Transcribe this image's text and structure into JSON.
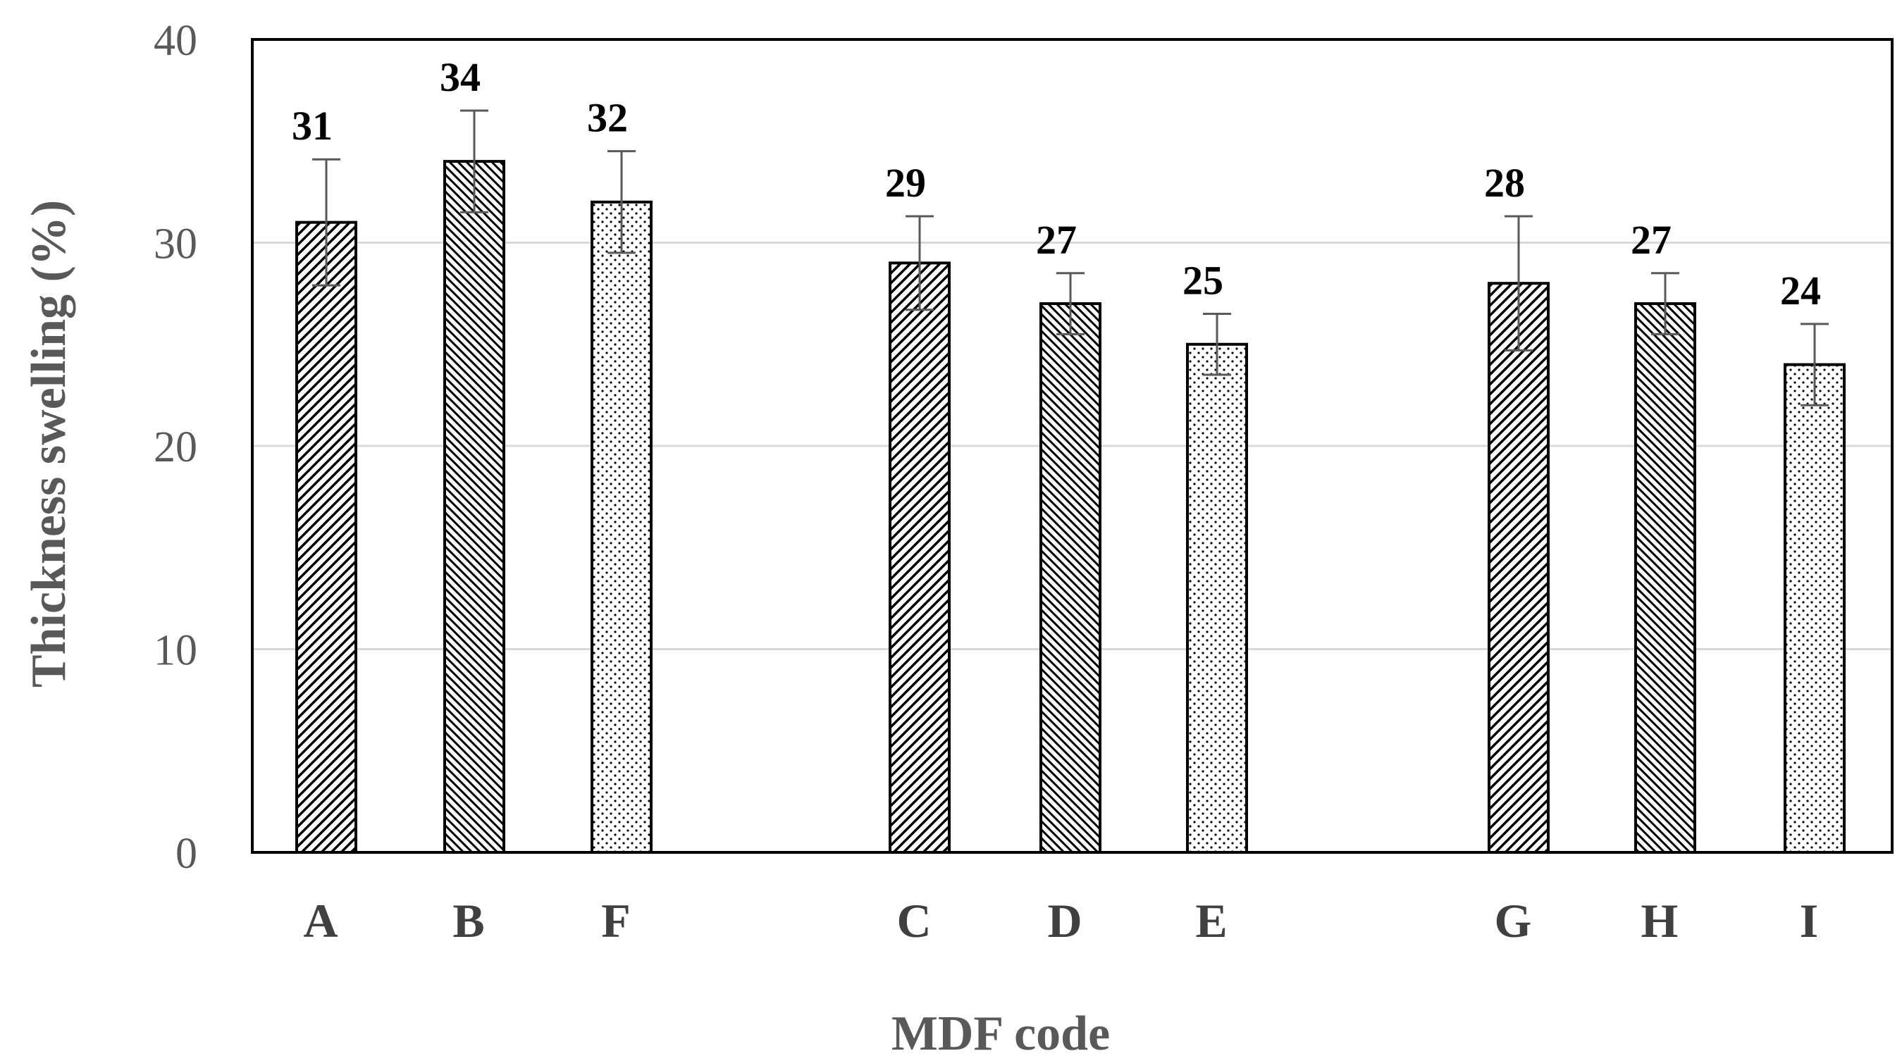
{
  "chart_data": {
    "type": "bar",
    "xlabel": "MDF code",
    "ylabel": "Thickness swelling  (%)",
    "ylim": [
      0,
      40
    ],
    "yticks": [
      0,
      10,
      20,
      30,
      40
    ],
    "grid": true,
    "legend": "none",
    "groups": [
      {
        "categories": [
          "A",
          "B",
          "F"
        ]
      },
      {
        "categories": [
          "C",
          "D",
          "E"
        ]
      },
      {
        "categories": [
          "G",
          "H",
          "I"
        ]
      }
    ],
    "categories": [
      "A",
      "B",
      "F",
      "C",
      "D",
      "E",
      "G",
      "H",
      "I"
    ],
    "values": [
      31,
      34,
      32,
      29,
      27,
      25,
      28,
      27,
      24
    ],
    "errors": [
      3.1,
      2.5,
      2.5,
      2.3,
      1.5,
      1.5,
      3.3,
      1.5,
      2.0
    ],
    "data_labels": [
      "31",
      "34",
      "32",
      "29",
      "27",
      "25",
      "28",
      "27",
      "24"
    ],
    "patterns": [
      "diagonal-right",
      "diagonal-left",
      "dots",
      "diagonal-right",
      "diagonal-left",
      "dots",
      "diagonal-right",
      "diagonal-left",
      "dots"
    ],
    "colors": {
      "bar_stroke": "#000000",
      "gridline": "#d9d9d9",
      "error_bar": "#595959"
    }
  }
}
